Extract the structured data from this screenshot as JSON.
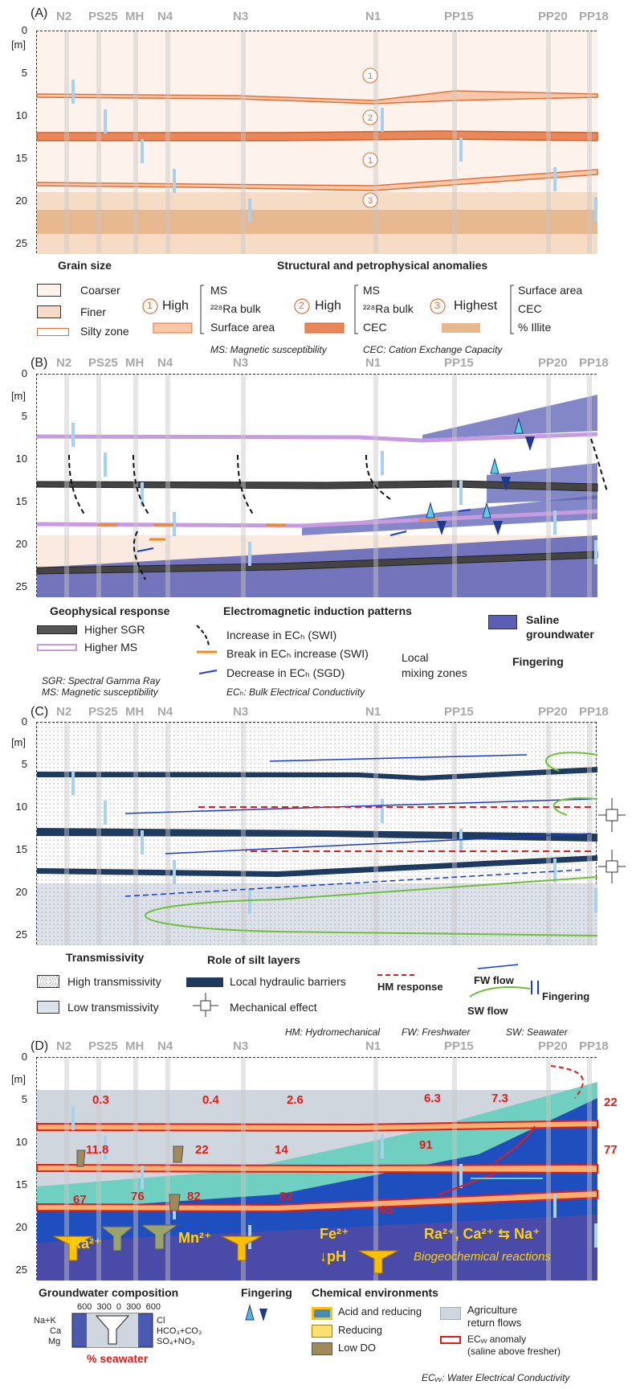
{
  "wells": [
    "N2",
    "PS25",
    "MH",
    "N4",
    "N3",
    "N1",
    "PP15",
    "PP20",
    "PP18"
  ],
  "depth_unit": "[m]",
  "depth_ticks": [
    "0",
    "5",
    "10",
    "15",
    "20",
    "25"
  ],
  "panels": {
    "A": {
      "label": "(A)",
      "zone_markers": [
        "1",
        "2",
        "1",
        "3"
      ],
      "legend": {
        "grain_title": "Grain size",
        "coarser": "Coarser",
        "finer": "Finer",
        "silty": "Silty zone",
        "anomaly_title": "Structural and petrophysical anomalies",
        "n1": "1",
        "n1_level": "High",
        "n1_items": [
          "MS",
          "²²⁸Ra bulk",
          "Surface area"
        ],
        "n2": "2",
        "n2_level": "High",
        "n2_items": [
          "MS",
          "²²⁸Ra bulk",
          "CEC"
        ],
        "n3": "3",
        "n3_level": "Highest",
        "n3_items": [
          "Surface area",
          "CEC",
          "% Illite"
        ],
        "note_ms": "MS: Magnetic susceptibility",
        "note_cec": "CEC: Cation Exchange Capacity"
      }
    },
    "B": {
      "label": "(B)",
      "legend": {
        "geo_title": "Geophysical response",
        "sgr": "Higher SGR",
        "ms": "Higher MS",
        "em_title": "Electromagnetic induction patterns",
        "increase": "Increase in ECₕ (SWI)",
        "break": "Break in ECₕ increase (SWI)",
        "decrease": "Decrease in ECₕ (SGD)",
        "local1": "Local",
        "local2": "mixing zones",
        "saline1": "Saline",
        "saline2": "groundwater",
        "fingering": "Fingering",
        "note_sgr": "SGR: Spectral Gamma Ray",
        "note_ms": "MS: Magnetic susceptibility",
        "note_ec": "ECₕ: Bulk Electrical Conductivity"
      }
    },
    "C": {
      "label": "(C)",
      "legend": {
        "trans_title": "Transmissivity",
        "high": "High transmissivity",
        "low": "Low transmissivity",
        "silt_title": "Role of silt layers",
        "barriers": "Local hydraulic barriers",
        "mech": "Mechanical effect",
        "hm": "HM response",
        "fw": "FW flow",
        "sw": "SW flow",
        "fingering": "Fingering",
        "note_hm": "HM: Hydromechanical",
        "note_fw": "FW: Freshwater",
        "note_sw": "SW: Seawater"
      }
    },
    "D": {
      "label": "(D)",
      "percent_labels": [
        "0.3",
        "0.4",
        "2.6",
        "6.3",
        "7.3",
        "22",
        "11.8",
        "22",
        "14",
        "91",
        "77",
        "67",
        "76",
        "82",
        "82",
        "65"
      ],
      "chem_labels": {
        "ra": "Ra²⁺",
        "mn": "Mn²⁺",
        "fe": "Fe²⁺",
        "ph": "↓pH",
        "exchange": "Ra²⁺, Ca²⁺ ⇆ Na⁺",
        "bio": "Biogeochemical reactions"
      },
      "legend": {
        "gw_title": "Groundwater composition",
        "scale": "600  300  0  300  600",
        "left_ions": [
          "Na+K",
          "Ca",
          "Mg"
        ],
        "right_ions": [
          "Cl",
          "HCO₃+CO₃",
          "SO₄+NO₃"
        ],
        "seawater": "% seawater",
        "fingering": "Fingering",
        "chem_title": "Chemical environments",
        "acid": "Acid and reducing",
        "reducing": "Reducing",
        "lowdo": "Low DO",
        "agri1": "Agriculture",
        "agri2": "return flows",
        "ecw1": "ECᵥᵥ anomaly",
        "ecw2": "(saline above fresher)",
        "note_ecw": "ECᵥᵥ: Water Electrical Conductivity"
      }
    }
  },
  "colors": {
    "orange": "#f08a1a",
    "saline": "#5a5fb5",
    "red": "#e01c1c",
    "navy": "#1f3a5f",
    "teal": "#6fcfc0",
    "yellow": "#ffc000"
  }
}
